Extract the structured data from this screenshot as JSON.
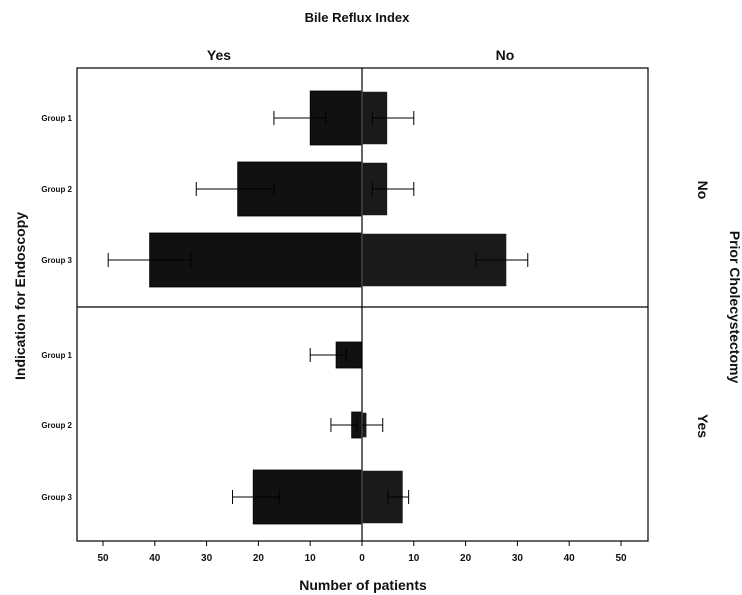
{
  "chart_data": {
    "type": "bar",
    "orientation": "horizontal",
    "layout": "back-to-back panels",
    "title": "Bile Reflux Index",
    "column_facet": {
      "label": "",
      "levels": [
        "Yes",
        "No"
      ]
    },
    "row_facet": {
      "label": "Prior Cholecystectomy",
      "levels": [
        "No",
        "Yes"
      ]
    },
    "xlabel": "Number of patients",
    "ylabel": "Indication for Endoscopy",
    "categories": [
      "Group 1",
      "Group 2",
      "Group 3"
    ],
    "x_ticks_left": [
      "50",
      "40",
      "30",
      "20",
      "10",
      "0"
    ],
    "x_ticks_right": [
      "0",
      "10",
      "20",
      "30",
      "40",
      "50"
    ],
    "xlim": [
      0,
      55
    ],
    "grid": false,
    "colors": {
      "yes_bar": "#111111",
      "no_bar": "#1a1a1a",
      "no_bar_outline": "#ffffff",
      "frame": "#000000"
    },
    "panels": [
      {
        "prior_cholecystectomy": "No",
        "series": [
          {
            "bile_reflux": "Yes",
            "values": [
              10,
              24,
              41
            ],
            "error_low": [
              7,
              17,
              33
            ],
            "error_high": [
              17,
              32,
              49
            ]
          },
          {
            "bile_reflux": "No",
            "values": [
              5,
              5,
              28
            ],
            "error_low": [
              2,
              2,
              22
            ],
            "error_high": [
              10,
              10,
              32
            ]
          }
        ]
      },
      {
        "prior_cholecystectomy": "Yes",
        "series": [
          {
            "bile_reflux": "Yes",
            "values": [
              5,
              2,
              21
            ],
            "error_low": [
              3,
              1,
              16
            ],
            "error_high": [
              10,
              6,
              25
            ]
          },
          {
            "bile_reflux": "No",
            "values": [
              0,
              1,
              8
            ],
            "error_low": [
              0,
              0,
              5
            ],
            "error_high": [
              0,
              4,
              9
            ]
          }
        ]
      }
    ]
  }
}
